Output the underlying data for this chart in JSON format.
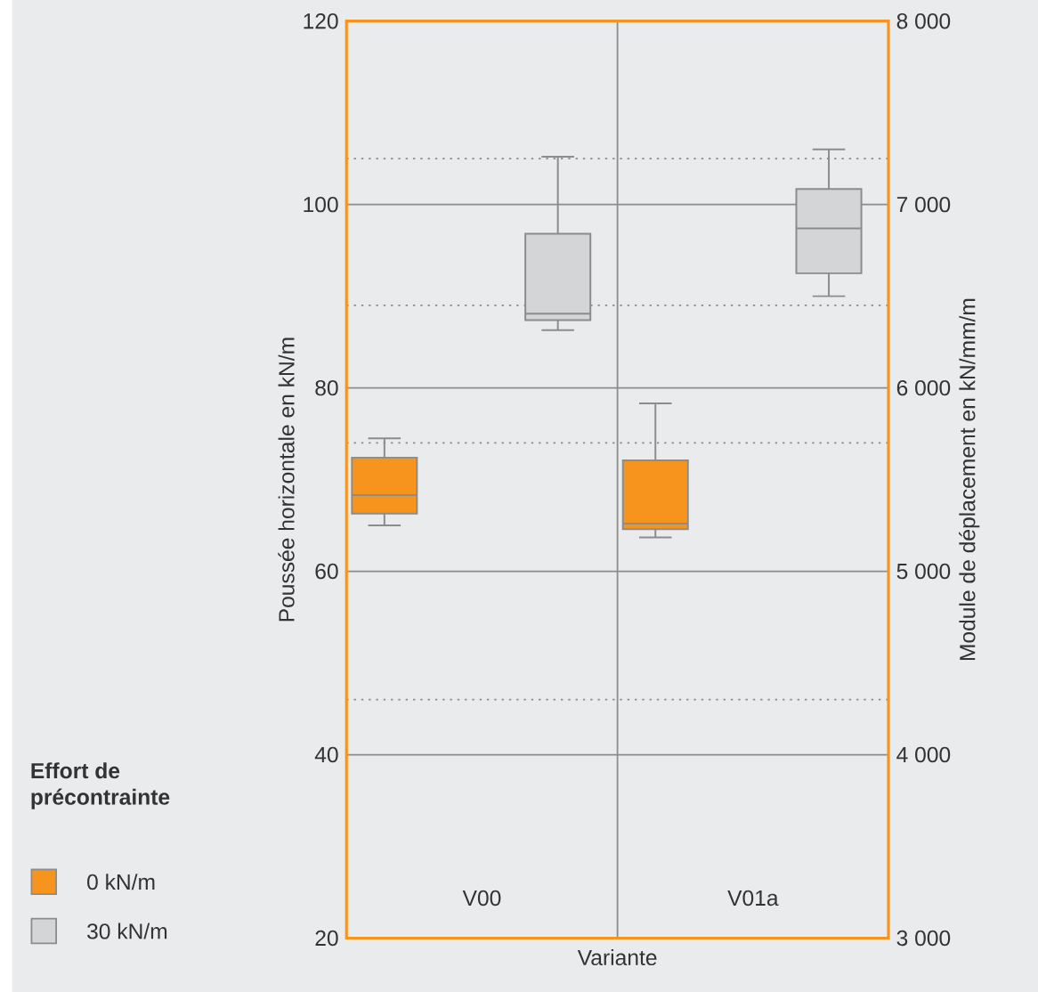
{
  "chart_data": {
    "type": "box",
    "categories": [
      "V00",
      "V01a"
    ],
    "xlabel": "Variante",
    "ylabel": "Poussée horizontale en kN/m",
    "y2label": "Module de déplacement en kN/mm/m",
    "legend_title": "Effort de précontrainte",
    "legend": "left",
    "grid": true,
    "ylim": [
      20,
      120
    ],
    "yticks": [
      20,
      40,
      60,
      80,
      100,
      120
    ],
    "y2lim": [
      3000,
      8000
    ],
    "y2ticks": [
      {
        "value": 3000,
        "label": "3 000"
      },
      {
        "value": 4000,
        "label": "4 000"
      },
      {
        "value": 5000,
        "label": "5 000"
      },
      {
        "value": 6000,
        "label": "6 000"
      },
      {
        "value": 7000,
        "label": "7 000"
      },
      {
        "value": 8000,
        "label": "8 000"
      }
    ],
    "ref_lines": [
      {
        "axis": "y",
        "value": 105,
        "color": "#8c8c8c",
        "line_style": "dotted"
      },
      {
        "axis": "y",
        "value": 89,
        "color": "#8c8c8c",
        "line_style": "dotted"
      },
      {
        "axis": "y",
        "value": 74,
        "color": "#8c8c8c",
        "line_style": "dotted"
      },
      {
        "axis": "y",
        "value": 46,
        "color": "#8c8c8c",
        "line_style": "dotted"
      }
    ],
    "series": [
      {
        "name": "0 kN/m",
        "color": "#f7941d",
        "boxes": [
          {
            "low": 65.0,
            "q1": 66.3,
            "median": 68.3,
            "q3": 72.4,
            "high": 74.5
          },
          {
            "low": 63.7,
            "q1": 64.6,
            "median": 65.2,
            "q3": 72.1,
            "high": 78.3
          }
        ]
      },
      {
        "name": "30 kN/m",
        "color": "#d4d5d7",
        "boxes": [
          {
            "low": 86.3,
            "q1": 87.4,
            "median": 88.1,
            "q3": 96.8,
            "high": 105.2
          },
          {
            "low": 90.0,
            "q1": 92.5,
            "median": 97.4,
            "q3": 101.7,
            "high": 106.0
          }
        ]
      }
    ]
  }
}
